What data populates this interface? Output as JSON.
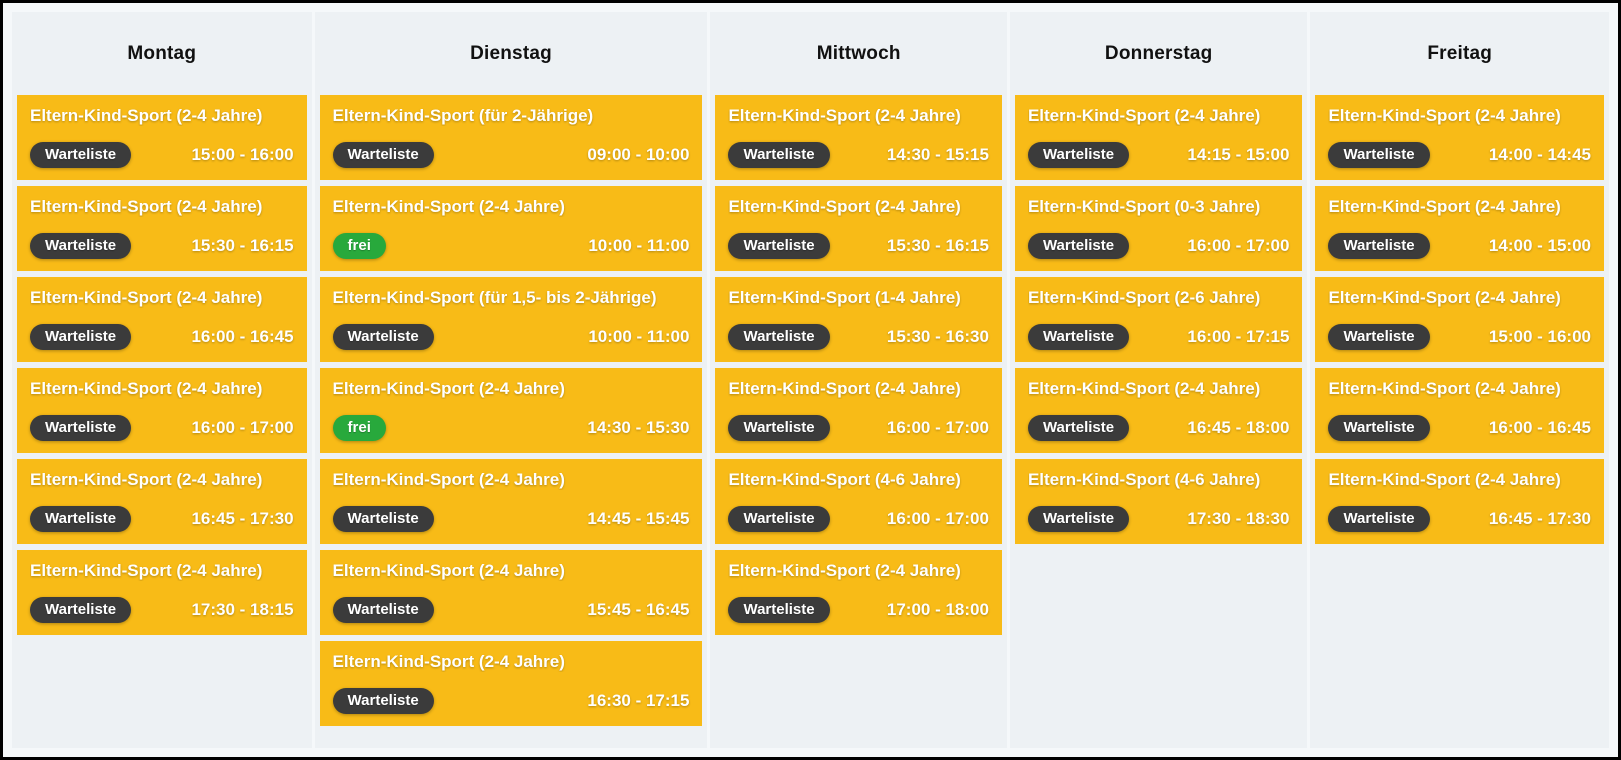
{
  "colors": {
    "frame_border": "#000000",
    "page_bg": "#edf1f4",
    "seam": "#f5f8fa",
    "card_bg": "#f8bb17",
    "card_text": "#ffffff",
    "header_text": "#111111",
    "badge_text": "#ffffff",
    "badge_waitlist_bg": "#3b3b3b",
    "badge_free_bg": "#28a93c"
  },
  "schedule": {
    "days": [
      {
        "label": "Montag",
        "courses": [
          {
            "title": "Eltern-Kind-Sport (2-4 Jahre)",
            "badge_label": "Warteliste",
            "badge_type": "waitlist",
            "time": "15:00 - 16:00"
          },
          {
            "title": "Eltern-Kind-Sport (2-4 Jahre)",
            "badge_label": "Warteliste",
            "badge_type": "waitlist",
            "time": "15:30 - 16:15"
          },
          {
            "title": "Eltern-Kind-Sport (2-4 Jahre)",
            "badge_label": "Warteliste",
            "badge_type": "waitlist",
            "time": "16:00 - 16:45"
          },
          {
            "title": "Eltern-Kind-Sport (2-4 Jahre)",
            "badge_label": "Warteliste",
            "badge_type": "waitlist",
            "time": "16:00 - 17:00"
          },
          {
            "title": "Eltern-Kind-Sport (2-4 Jahre)",
            "badge_label": "Warteliste",
            "badge_type": "waitlist",
            "time": "16:45 - 17:30"
          },
          {
            "title": "Eltern-Kind-Sport (2-4 Jahre)",
            "badge_label": "Warteliste",
            "badge_type": "waitlist",
            "time": "17:30 - 18:15"
          }
        ]
      },
      {
        "label": "Dienstag",
        "courses": [
          {
            "title": "Eltern-Kind-Sport (für 2-Jährige)",
            "badge_label": "Warteliste",
            "badge_type": "waitlist",
            "time": "09:00 - 10:00"
          },
          {
            "title": "Eltern-Kind-Sport (2-4 Jahre)",
            "badge_label": "frei",
            "badge_type": "free",
            "time": "10:00 - 11:00"
          },
          {
            "title": "Eltern-Kind-Sport (für 1,5- bis 2-Jährige)",
            "badge_label": "Warteliste",
            "badge_type": "waitlist",
            "time": "10:00 - 11:00"
          },
          {
            "title": "Eltern-Kind-Sport (2-4 Jahre)",
            "badge_label": "frei",
            "badge_type": "free",
            "time": "14:30 - 15:30"
          },
          {
            "title": "Eltern-Kind-Sport (2-4 Jahre)",
            "badge_label": "Warteliste",
            "badge_type": "waitlist",
            "time": "14:45 - 15:45"
          },
          {
            "title": "Eltern-Kind-Sport (2-4 Jahre)",
            "badge_label": "Warteliste",
            "badge_type": "waitlist",
            "time": "15:45 - 16:45"
          },
          {
            "title": "Eltern-Kind-Sport (2-4 Jahre)",
            "badge_label": "Warteliste",
            "badge_type": "waitlist",
            "time": "16:30 - 17:15"
          }
        ]
      },
      {
        "label": "Mittwoch",
        "courses": [
          {
            "title": "Eltern-Kind-Sport (2-4 Jahre)",
            "badge_label": "Warteliste",
            "badge_type": "waitlist",
            "time": "14:30 - 15:15"
          },
          {
            "title": "Eltern-Kind-Sport (2-4 Jahre)",
            "badge_label": "Warteliste",
            "badge_type": "waitlist",
            "time": "15:30 - 16:15"
          },
          {
            "title": "Eltern-Kind-Sport (1-4 Jahre)",
            "badge_label": "Warteliste",
            "badge_type": "waitlist",
            "time": "15:30 - 16:30"
          },
          {
            "title": "Eltern-Kind-Sport (2-4 Jahre)",
            "badge_label": "Warteliste",
            "badge_type": "waitlist",
            "time": "16:00 - 17:00"
          },
          {
            "title": "Eltern-Kind-Sport (4-6 Jahre)",
            "badge_label": "Warteliste",
            "badge_type": "waitlist",
            "time": "16:00 - 17:00"
          },
          {
            "title": "Eltern-Kind-Sport (2-4 Jahre)",
            "badge_label": "Warteliste",
            "badge_type": "waitlist",
            "time": "17:00 - 18:00"
          }
        ]
      },
      {
        "label": "Donnerstag",
        "courses": [
          {
            "title": "Eltern-Kind-Sport (2-4 Jahre)",
            "badge_label": "Warteliste",
            "badge_type": "waitlist",
            "time": "14:15 - 15:00"
          },
          {
            "title": "Eltern-Kind-Sport (0-3 Jahre)",
            "badge_label": "Warteliste",
            "badge_type": "waitlist",
            "time": "16:00 - 17:00"
          },
          {
            "title": "Eltern-Kind-Sport (2-6 Jahre)",
            "badge_label": "Warteliste",
            "badge_type": "waitlist",
            "time": "16:00 - 17:15"
          },
          {
            "title": "Eltern-Kind-Sport (2-4 Jahre)",
            "badge_label": "Warteliste",
            "badge_type": "waitlist",
            "time": "16:45 - 18:00"
          },
          {
            "title": "Eltern-Kind-Sport (4-6 Jahre)",
            "badge_label": "Warteliste",
            "badge_type": "waitlist",
            "time": "17:30 - 18:30"
          }
        ]
      },
      {
        "label": "Freitag",
        "courses": [
          {
            "title": "Eltern-Kind-Sport (2-4 Jahre)",
            "badge_label": "Warteliste",
            "badge_type": "waitlist",
            "time": "14:00 - 14:45"
          },
          {
            "title": "Eltern-Kind-Sport (2-4 Jahre)",
            "badge_label": "Warteliste",
            "badge_type": "waitlist",
            "time": "14:00 - 15:00"
          },
          {
            "title": "Eltern-Kind-Sport (2-4 Jahre)",
            "badge_label": "Warteliste",
            "badge_type": "waitlist",
            "time": "15:00 - 16:00"
          },
          {
            "title": "Eltern-Kind-Sport (2-4 Jahre)",
            "badge_label": "Warteliste",
            "badge_type": "waitlist",
            "time": "16:00 - 16:45"
          },
          {
            "title": "Eltern-Kind-Sport (2-4 Jahre)",
            "badge_label": "Warteliste",
            "badge_type": "waitlist",
            "time": "16:45 - 17:30"
          }
        ]
      }
    ]
  }
}
